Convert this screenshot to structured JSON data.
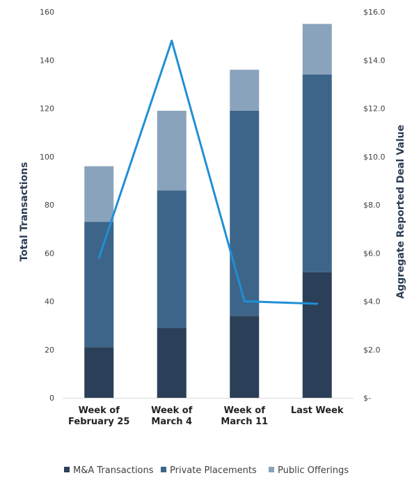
{
  "chart_data": {
    "type": "bar",
    "stacked": true,
    "categories": [
      [
        "Week of",
        "February 25"
      ],
      [
        "Week of",
        "March 4"
      ],
      [
        "Week of",
        "March 11"
      ],
      [
        "Last Week"
      ]
    ],
    "series": [
      {
        "name": "M&A Transactions",
        "values": [
          21,
          29,
          34,
          52
        ],
        "color": "#2b3f58"
      },
      {
        "name": "Private Placements",
        "values": [
          52,
          57,
          85,
          82
        ],
        "color": "#3d6589"
      },
      {
        "name": "Public Offerings",
        "values": [
          23,
          33,
          17,
          21
        ],
        "color": "#8aa3bd"
      }
    ],
    "line_series": {
      "values": [
        5.8,
        14.8,
        4.0,
        3.9
      ],
      "color": "#1f8fd6",
      "axis": "right"
    },
    "ylabel": "Total Transactions",
    "y2label": "Aggregate Reported Deal Value",
    "ylim": [
      0,
      160
    ],
    "y2lim": [
      0,
      16
    ],
    "yticks": [
      "0",
      "20",
      "40",
      "60",
      "80",
      "100",
      "120",
      "140",
      "160"
    ],
    "y2ticks": [
      "$-",
      "$2.0",
      "$4.0",
      "$6.0",
      "$8.0",
      "$10.0",
      "$12.0",
      "$14.0",
      "$16.0"
    ],
    "legend_position": "bottom",
    "grid": false
  }
}
